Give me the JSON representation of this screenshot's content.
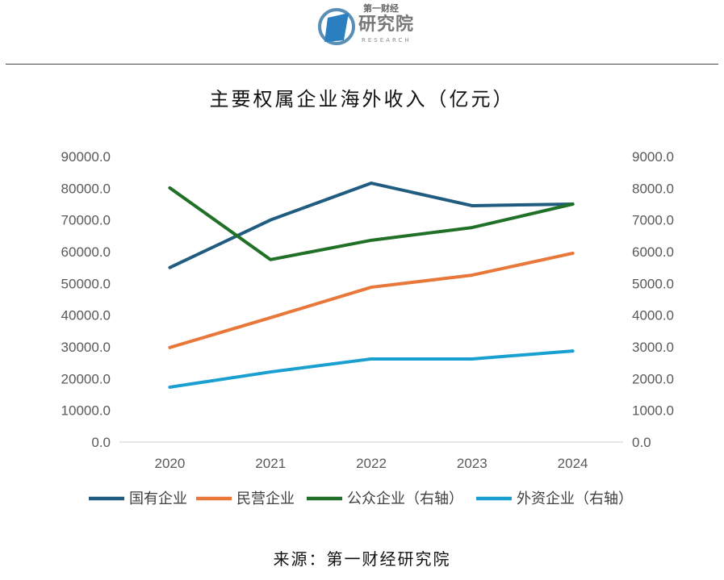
{
  "logo": {
    "line1": "第一财经",
    "line2": "研究院",
    "line3": "RESEARCH"
  },
  "title": "主要权属企业海外收入（亿元）",
  "source": "来源：第一财经研究院",
  "chart_data": {
    "type": "line",
    "title": "主要权属企业海外收入（亿元）",
    "categories": [
      "2020",
      "2021",
      "2022",
      "2023",
      "2024"
    ],
    "left_axis": {
      "ylim": [
        0,
        90000
      ],
      "ticks": [
        "0.0",
        "10000.0",
        "20000.0",
        "30000.0",
        "40000.0",
        "50000.0",
        "60000.0",
        "70000.0",
        "80000.0",
        "90000.0"
      ]
    },
    "right_axis": {
      "ylim": [
        0,
        9000
      ],
      "ticks": [
        "0.0",
        "1000.0",
        "2000.0",
        "3000.0",
        "4000.0",
        "5000.0",
        "6000.0",
        "7000.0",
        "8000.0",
        "9000.0"
      ]
    },
    "grid": false,
    "legend_position": "bottom",
    "series": [
      {
        "name": "国有企业",
        "axis": "left",
        "color": "#1f5c7f",
        "values": [
          55000,
          70000,
          81600,
          74500,
          75000
        ]
      },
      {
        "name": "民营企业",
        "axis": "left",
        "color": "#e8783a",
        "values": [
          29800,
          39200,
          48800,
          52600,
          59500
        ]
      },
      {
        "name": "公众企业（右轴）",
        "axis": "right",
        "color": "#217027",
        "values": [
          8010,
          5750,
          6360,
          6760,
          7500
        ]
      },
      {
        "name": "外资企业（右轴）",
        "axis": "right",
        "color": "#1a9fd1",
        "values": [
          1730,
          2210,
          2620,
          2620,
          2870
        ]
      }
    ]
  }
}
